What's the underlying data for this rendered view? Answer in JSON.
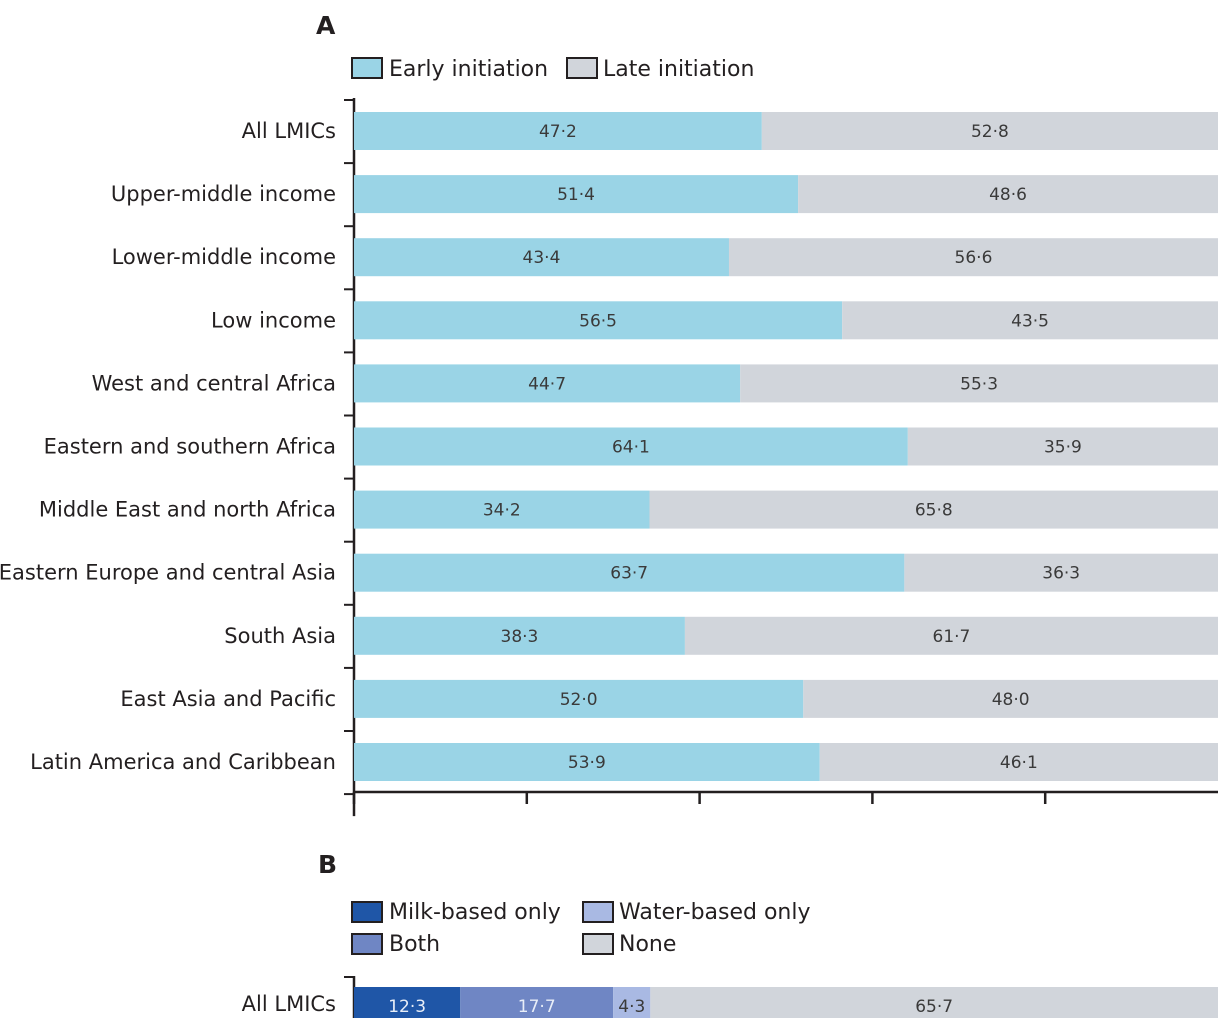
{
  "colors": {
    "early": "#9ad4e6",
    "late": "#d1d5db",
    "milk": "#1f56a7",
    "both": "#6f86c4",
    "water": "#a9b9e3",
    "none": "#d1d5db",
    "axis": "#231f20",
    "text": "#231f20"
  },
  "chart_data": [
    {
      "type": "bar",
      "panel": "A",
      "orientation": "horizontal",
      "stacked": true,
      "categories": [
        "All LMICs",
        "Upper-middle income",
        "Lower-middle income",
        "Low income",
        "West and central Africa",
        "Eastern and southern Africa",
        "Middle East and north Africa",
        "Eastern Europe and central Asia",
        "South Asia",
        "East Asia and Pacific",
        "Latin America and Caribbean"
      ],
      "series": [
        {
          "name": "Early initiation",
          "values": [
            47.2,
            51.4,
            43.4,
            56.5,
            44.7,
            64.1,
            34.2,
            63.7,
            38.3,
            52.0,
            53.9
          ],
          "labels": [
            "47·2",
            "51·4",
            "43·4",
            "56·5",
            "44·7",
            "64·1",
            "34·2",
            "63·7",
            "38·3",
            "52·0",
            "53·9"
          ]
        },
        {
          "name": "Late initiation",
          "values": [
            52.8,
            48.6,
            56.6,
            43.5,
            55.3,
            35.9,
            65.8,
            36.3,
            61.7,
            48.0,
            46.1
          ],
          "labels": [
            "52·8",
            "48·6",
            "56·6",
            "43·5",
            "55·3",
            "35·9",
            "65·8",
            "36·3",
            "61·7",
            "48·0",
            "46·1"
          ]
        }
      ],
      "xlim": [
        0,
        100
      ],
      "xticks": [
        0,
        20,
        40,
        60,
        80
      ],
      "xlabel": "",
      "ylabel": "",
      "legend": "top"
    },
    {
      "type": "bar",
      "panel": "B",
      "orientation": "horizontal",
      "stacked": true,
      "categories": [
        "All LMICs"
      ],
      "series": [
        {
          "name": "Milk-based only",
          "values": [
            12.3
          ],
          "labels": [
            "12·3"
          ]
        },
        {
          "name": "Both",
          "values": [
            17.7
          ],
          "labels": [
            "17·7"
          ]
        },
        {
          "name": "Water-based only",
          "values": [
            4.3
          ],
          "labels": [
            "4·3"
          ]
        },
        {
          "name": "None",
          "values": [
            65.7
          ],
          "labels": [
            "65·7"
          ]
        }
      ],
      "xlim": [
        0,
        100
      ],
      "legend": "top"
    }
  ]
}
